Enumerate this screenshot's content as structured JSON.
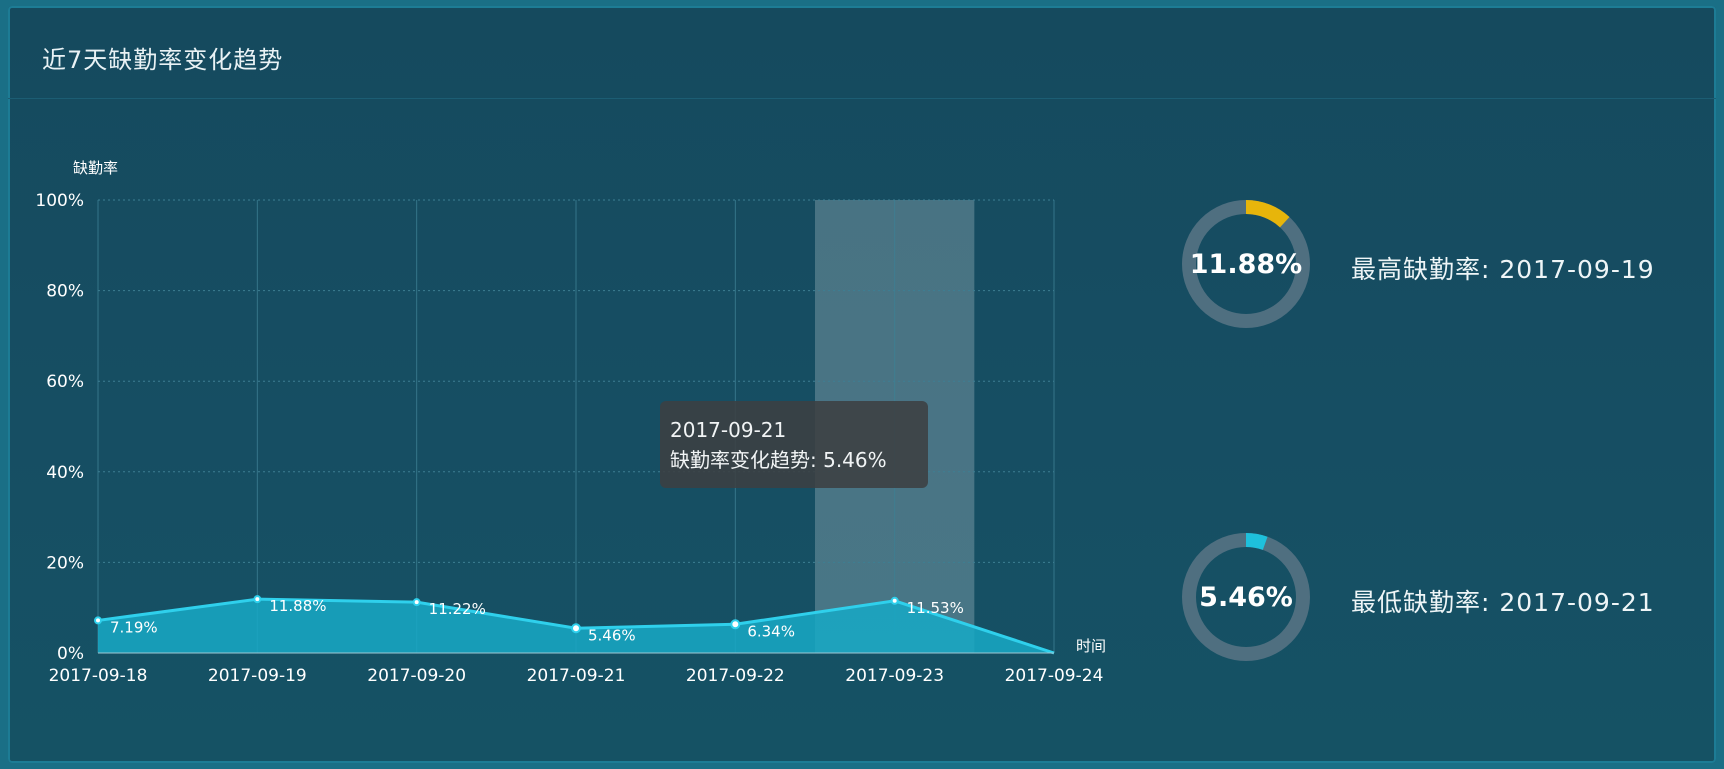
{
  "panel": {
    "title": "近7天缺勤率变化趋势"
  },
  "tooltip": {
    "date": "2017-09-21",
    "text": "缺勤率变化趋势: 5.46%"
  },
  "stats": [
    {
      "value": "11.88%",
      "label": "最高缺勤率:  2017-09-19",
      "fraction": 0.1188,
      "color": "#e7b50b"
    },
    {
      "value": "5.46%",
      "label": "最低缺勤率:  2017-09-21",
      "fraction": 0.0546,
      "color": "#1ec0dc"
    }
  ],
  "chart_data": {
    "type": "area",
    "title": "",
    "ylabel": "缺勤率",
    "xlabel": "时间",
    "categories": [
      "2017-09-18",
      "2017-09-19",
      "2017-09-20",
      "2017-09-21",
      "2017-09-22",
      "2017-09-23",
      "2017-09-24"
    ],
    "values": [
      7.19,
      11.88,
      11.22,
      5.46,
      6.34,
      11.53,
      0
    ],
    "data_labels": [
      "7.19%",
      "11.88%",
      "11.22%",
      "5.46%",
      "6.34%",
      "11.53%",
      ""
    ],
    "ylim": [
      0,
      100
    ],
    "yticks": [
      "0%",
      "20%",
      "40%",
      "60%",
      "80%",
      "100%"
    ],
    "highlight_category": "2017-09-23",
    "colors": {
      "line": "#2fd0ec",
      "area": "#18a9c6",
      "grid": "#3d7f93",
      "highlight": "#ffffff"
    },
    "grid": true
  }
}
